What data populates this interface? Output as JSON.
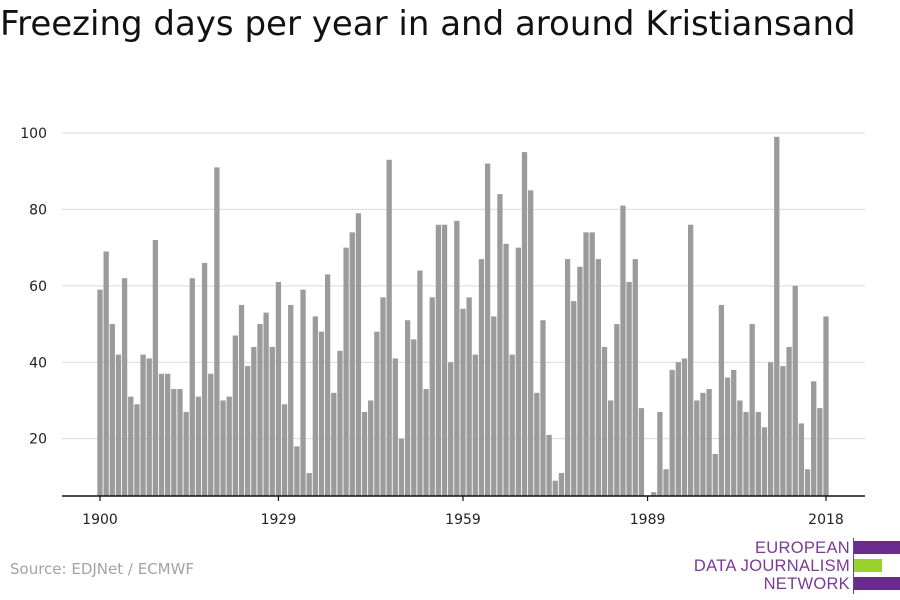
{
  "title": "Freezing days per year in and around Kristiansand",
  "source": "Source: EDJNet / ECMWF",
  "logo": {
    "lines": [
      "EUROPEAN",
      "DATA JOURNALISM",
      "NETWORK"
    ],
    "colors": {
      "purple": "#6a2c8c",
      "green": "#9bd12d"
    }
  },
  "chart_data": {
    "type": "bar",
    "title": "Freezing days per year in and around Kristiansand",
    "xlabel": "",
    "ylabel": "",
    "x_start": 1900,
    "x_end": 2018,
    "x_ticks": [
      1900,
      1929,
      1959,
      1989,
      2018
    ],
    "y_ticks": [
      20,
      40,
      60,
      80,
      100
    ],
    "ylim": [
      5,
      100
    ],
    "grid": true,
    "bar_color": "#9b9b9b",
    "values": [
      59,
      69,
      50,
      42,
      62,
      31,
      29,
      42,
      41,
      72,
      37,
      37,
      33,
      33,
      27,
      62,
      31,
      66,
      37,
      91,
      30,
      31,
      47,
      55,
      39,
      44,
      50,
      53,
      44,
      61,
      29,
      55,
      18,
      59,
      11,
      52,
      48,
      63,
      32,
      43,
      70,
      74,
      79,
      27,
      30,
      48,
      57,
      93,
      41,
      20,
      51,
      46,
      64,
      33,
      57,
      76,
      76,
      40,
      77,
      54,
      57,
      42,
      67,
      92,
      52,
      84,
      71,
      42,
      70,
      95,
      85,
      32,
      51,
      21,
      9,
      11,
      67,
      56,
      65,
      74,
      74,
      67,
      44,
      30,
      50,
      81,
      61,
      67,
      28,
      5,
      6,
      27,
      12,
      38,
      40,
      41,
      76,
      30,
      32,
      33,
      16,
      55,
      36,
      38,
      30,
      27,
      50,
      27,
      23,
      40,
      99,
      39,
      44,
      60,
      24,
      12,
      35,
      28,
      52
    ]
  }
}
